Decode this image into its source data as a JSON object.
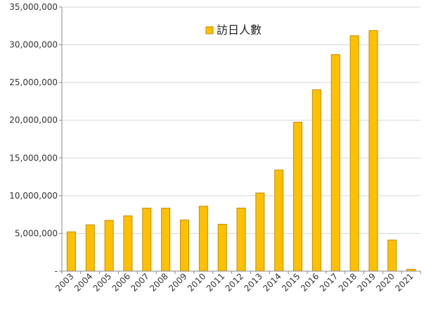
{
  "colors": {
    "bar_fill": "#FFC000",
    "bar_stroke": "#C58A00",
    "grid": "#D0D7DE",
    "axis": "#888888",
    "text": "#333333"
  },
  "chart_data": {
    "type": "bar",
    "title": "",
    "xlabel": "",
    "ylabel": "",
    "ylim": [
      0,
      35000000
    ],
    "grid": true,
    "legend_position": "top-center",
    "y_ticks": [
      0,
      5000000,
      10000000,
      15000000,
      20000000,
      25000000,
      30000000,
      35000000
    ],
    "y_tick_labels": [
      "-",
      "5,000,000",
      "10,000,000",
      "15,000,000",
      "20,000,000",
      "25,000,000",
      "30,000,000",
      "35,000,000"
    ],
    "categories": [
      "2003",
      "2004",
      "2005",
      "2006",
      "2007",
      "2008",
      "2009",
      "2010",
      "2011",
      "2012",
      "2013",
      "2014",
      "2015",
      "2016",
      "2017",
      "2018",
      "2019",
      "2020",
      "2021"
    ],
    "series": [
      {
        "name": "訪日人數",
        "values": [
          5210000,
          6140000,
          6730000,
          7330000,
          8350000,
          8350000,
          6790000,
          8610000,
          6220000,
          8360000,
          10360000,
          13410000,
          19740000,
          24040000,
          28690000,
          31190000,
          31880000,
          4120000,
          250000
        ]
      }
    ]
  }
}
